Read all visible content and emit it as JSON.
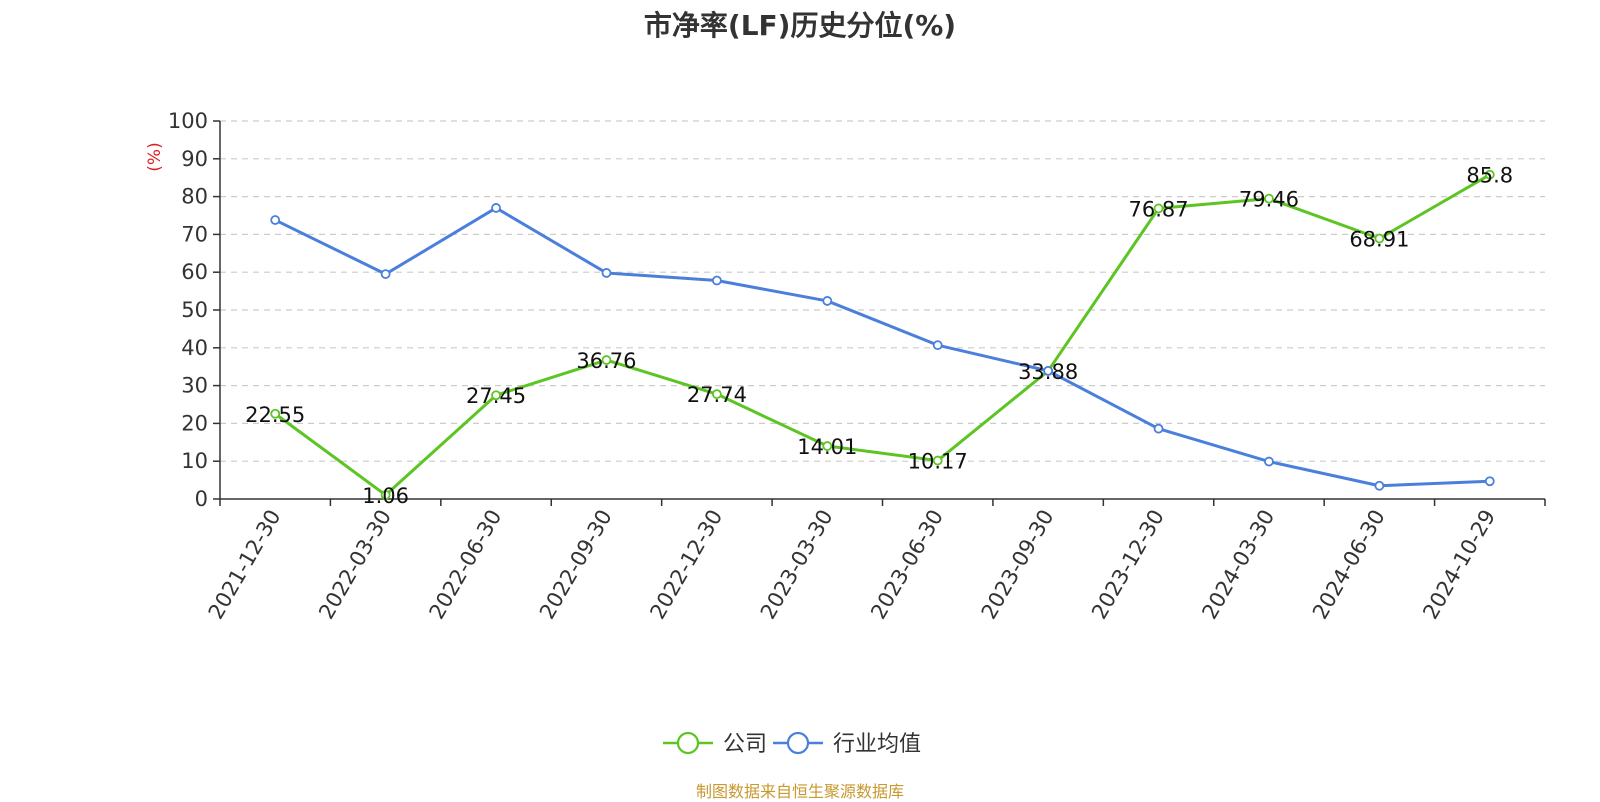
{
  "chart_data": {
    "type": "line",
    "title": "市净率(LF)历史分位(%)",
    "ylabel": "(%)",
    "ylim": [
      0,
      100
    ],
    "yticks": [
      0,
      10,
      20,
      30,
      40,
      50,
      60,
      70,
      80,
      90,
      100
    ],
    "grid": true,
    "legend_position": "bottom",
    "categories": [
      "2021-12-30",
      "2022-03-30",
      "2022-06-30",
      "2022-09-30",
      "2022-12-30",
      "2023-03-30",
      "2023-06-30",
      "2023-09-30",
      "2023-12-30",
      "2024-03-30",
      "2024-06-30",
      "2024-10-29"
    ],
    "series": [
      {
        "name": "公司",
        "color": "#5cc523",
        "values": [
          22.55,
          1.06,
          27.45,
          36.76,
          27.74,
          14.01,
          10.17,
          33.88,
          76.87,
          79.46,
          68.91,
          85.8
        ],
        "labels": [
          "22.55",
          "1.06",
          "27.45",
          "36.76",
          "27.74",
          "14.01",
          "10.17",
          "33.88",
          "76.87",
          "79.46",
          "68.91",
          "85.8"
        ]
      },
      {
        "name": "行业均值",
        "color": "#4a7fdc",
        "values": [
          73.8,
          59.5,
          77,
          59.8,
          57.8,
          52.4,
          40.7,
          33.9,
          18.6,
          9.9,
          3.5,
          4.7
        ]
      }
    ]
  },
  "source_text": "制图数据来自恒生聚源数据库"
}
